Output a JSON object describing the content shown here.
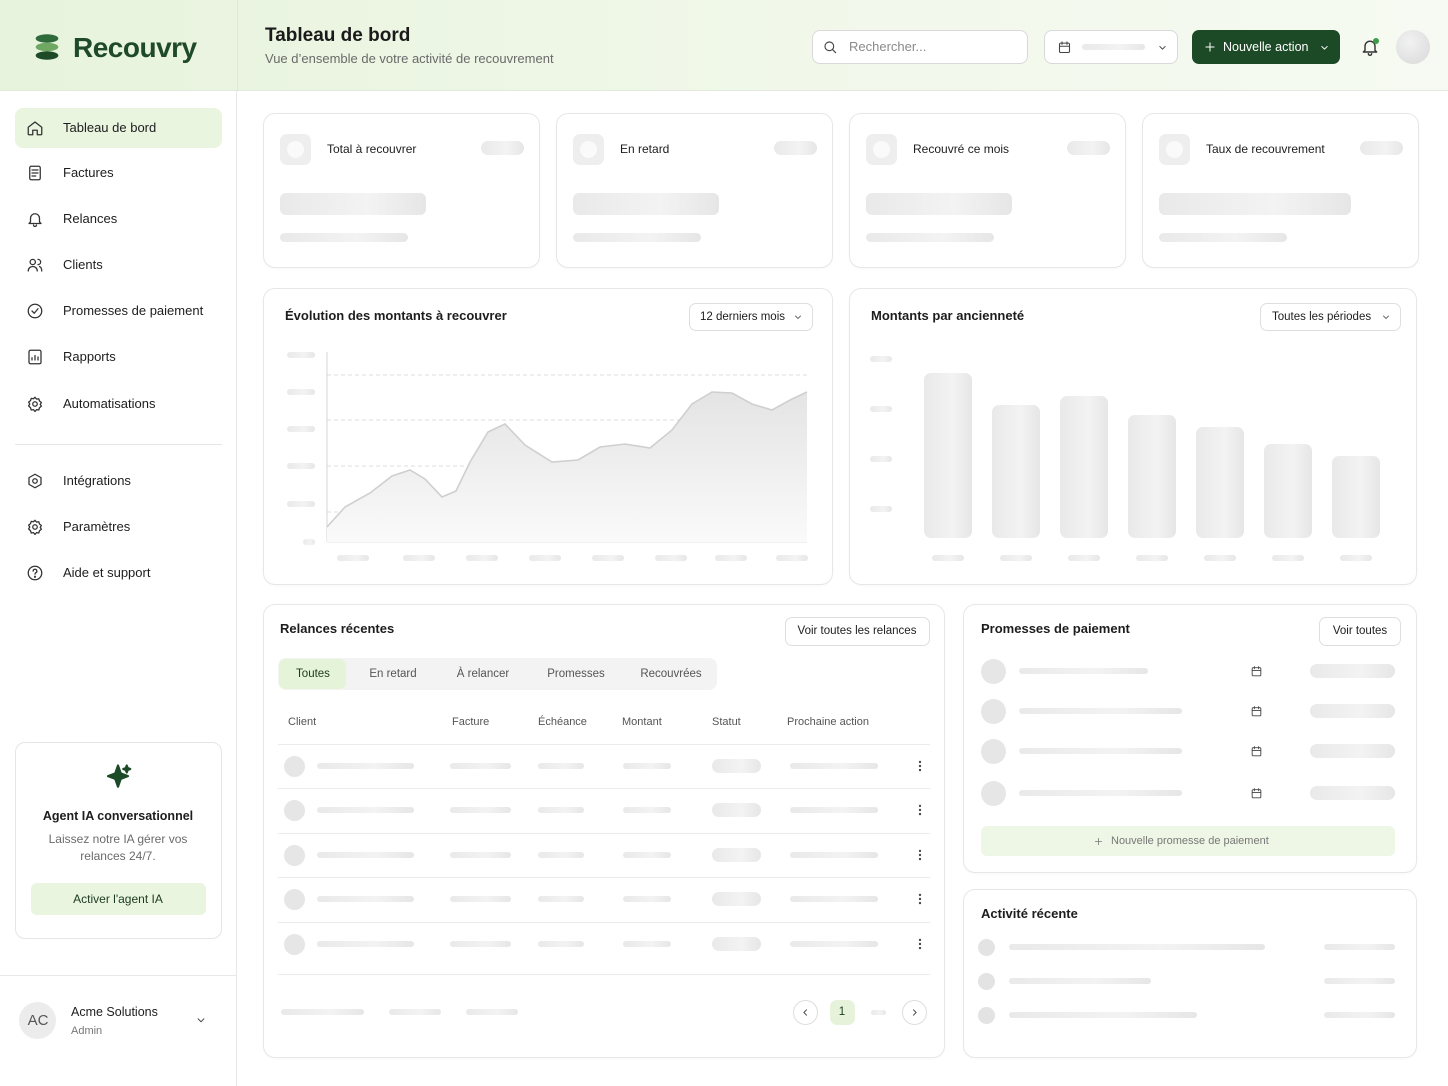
{
  "brand": "Recouvry",
  "header": {
    "title": "Tableau de bord",
    "subtitle": "Vue d’ensemble de votre activité de recouvrement",
    "search_placeholder": "Rechercher...",
    "primary_action": "Nouvelle action"
  },
  "nav": {
    "main": [
      "Tableau de bord",
      "Factures",
      "Relances",
      "Clients",
      "Promesses de paiement",
      "Rapports",
      "Automatisations"
    ],
    "secondary": [
      "Intégrations",
      "Paramètres",
      "Aide et support"
    ]
  },
  "agent_card": {
    "title": "Agent IA conversationnel",
    "description": "Laissez notre IA gérer vos relances 24/7.",
    "button": "Activer l'agent IA"
  },
  "account": {
    "initials": "AC",
    "name": "Acme Solutions",
    "role": "Admin"
  },
  "kpis": [
    "Total à recouvrer",
    "En retard",
    "Recouvré ce mois",
    "Taux de recouvrement"
  ],
  "charts": [
    {
      "title": "Évolution des montants à recouvrer",
      "filter": "12 derniers mois"
    },
    {
      "title": "Montants par ancienneté",
      "filter": "Toutes les périodes"
    }
  ],
  "relances": {
    "title": "Relances récentes",
    "action": "Voir toutes les relances",
    "tabs": [
      "Toutes",
      "En retard",
      "À relancer",
      "Promesses",
      "Recouvrées"
    ],
    "columns": [
      "Client",
      "Facture",
      "Échéance",
      "Montant",
      "Statut",
      "Prochaine action"
    ],
    "current_page": 1
  },
  "promesses": {
    "title": "Promesses de paiement",
    "action": "Voir toutes",
    "add": "Nouvelle promesse de paiement"
  },
  "activity": {
    "title": "Activité récente"
  }
}
